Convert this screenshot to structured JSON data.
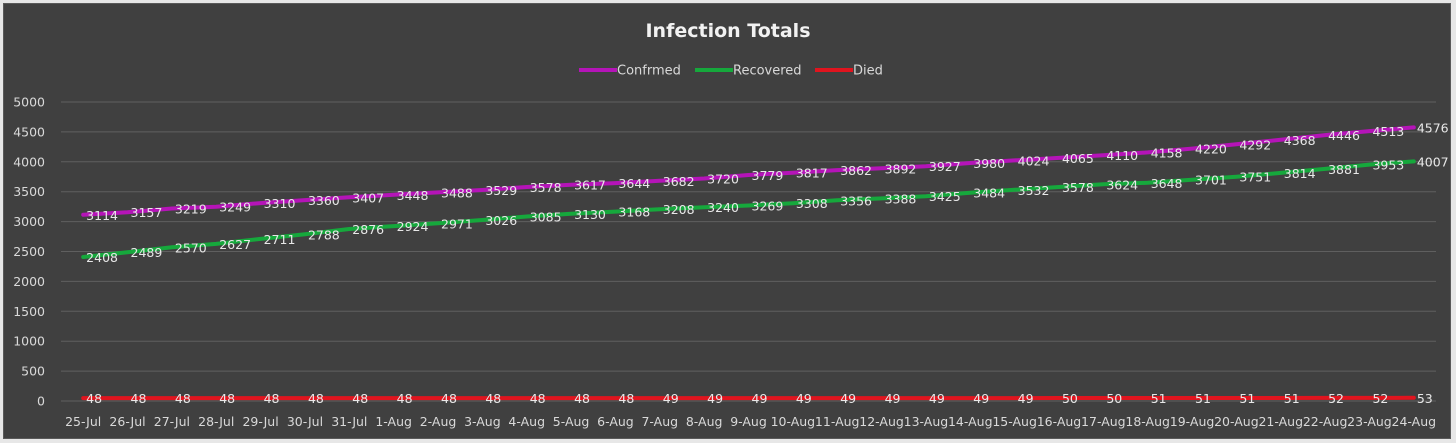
{
  "chart_data": {
    "type": "line",
    "title": "Infection Totals",
    "xlabel": "",
    "ylabel": "",
    "ylim": [
      0,
      5000
    ],
    "ytick_values": [
      0,
      500,
      1000,
      1500,
      2000,
      2500,
      3000,
      3500,
      4000,
      4500,
      5000
    ],
    "grid": true,
    "legend_position": "top",
    "categories": [
      "25-Jul",
      "26-Jul",
      "27-Jul",
      "28-Jul",
      "29-Jul",
      "30-Jul",
      "31-Jul",
      "1-Aug",
      "2-Aug",
      "3-Aug",
      "4-Aug",
      "5-Aug",
      "6-Aug",
      "7-Aug",
      "8-Aug",
      "9-Aug",
      "10-Aug",
      "11-Aug",
      "12-Aug",
      "13-Aug",
      "14-Aug",
      "15-Aug",
      "16-Aug",
      "17-Aug",
      "18-Aug",
      "19-Aug",
      "20-Aug",
      "21-Aug",
      "22-Aug",
      "23-Aug",
      "24-Aug"
    ],
    "series": [
      {
        "name": "Confrmed",
        "color": "#b514b8",
        "values": [
          3114,
          3157,
          3219,
          3249,
          3310,
          3360,
          3407,
          3448,
          3488,
          3529,
          3578,
          3617,
          3644,
          3682,
          3720,
          3779,
          3817,
          3862,
          3892,
          3927,
          3980,
          4024,
          4065,
          4110,
          4158,
          4220,
          4292,
          4368,
          4446,
          4513,
          4576
        ]
      },
      {
        "name": "Recovered",
        "color": "#16a83c",
        "values": [
          2408,
          2489,
          2570,
          2627,
          2711,
          2788,
          2876,
          2924,
          2971,
          3026,
          3085,
          3130,
          3168,
          3208,
          3240,
          3269,
          3308,
          3356,
          3388,
          3425,
          3484,
          3532,
          3578,
          3624,
          3648,
          3701,
          3751,
          3814,
          3881,
          3953,
          4007
        ]
      },
      {
        "name": "Died",
        "color": "#e0141e",
        "values": [
          48,
          48,
          48,
          48,
          48,
          48,
          48,
          48,
          48,
          48,
          48,
          48,
          48,
          49,
          49,
          49,
          49,
          49,
          49,
          49,
          49,
          49,
          50,
          50,
          51,
          51,
          51,
          51,
          52,
          52,
          53
        ]
      }
    ]
  }
}
